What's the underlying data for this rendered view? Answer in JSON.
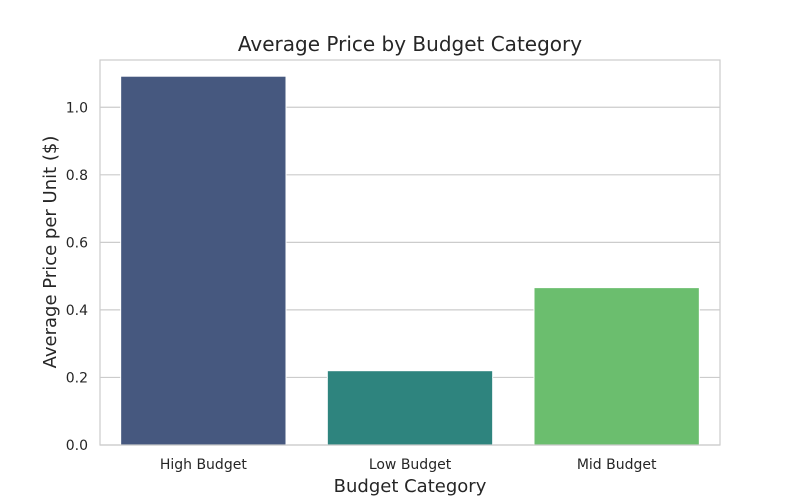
{
  "chart_data": {
    "type": "bar",
    "title": "Average Price by Budget Category",
    "xlabel": "Budget Category",
    "ylabel": "Average Price per Unit ($)",
    "categories": [
      "High Budget",
      "Low Budget",
      "Mid Budget"
    ],
    "values": [
      1.092,
      0.22,
      0.466
    ],
    "ylim": [
      0,
      1.14
    ],
    "yticks": [
      "0.0",
      "0.2",
      "0.4",
      "0.6",
      "0.8",
      "1.0"
    ],
    "grid": true,
    "colors": [
      "#46587F",
      "#2E847E",
      "#6BBE6E"
    ],
    "grid_color": "#CCCCCC",
    "spine_color": "#CCCCCC"
  }
}
